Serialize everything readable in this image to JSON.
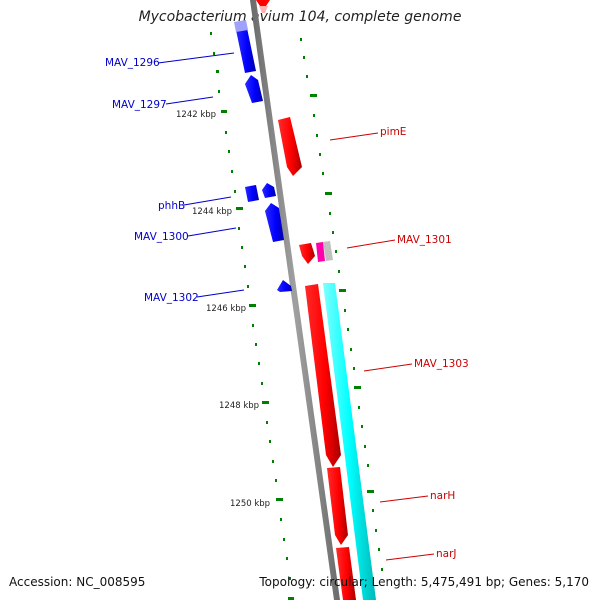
{
  "title": "Mycobacterium avium 104, complete genome",
  "footer": {
    "accession": "Accession: NC_008595",
    "summary": "Topology: circular; Length: 5,475,491 bp; Genes: 5,170"
  },
  "colors": {
    "backbone": "#808080",
    "forward_gene": "#ff0000",
    "reverse_gene": "#0000ff",
    "secondary_track": "#00ffff",
    "tick": "#008000",
    "forward_label": "#cc0000",
    "reverse_label": "#0000cc",
    "feature_pink": "#ff00aa",
    "feature_gray": "#c0c0c0"
  },
  "kbp_ticks": [
    "1242 kbp",
    "1244 kbp",
    "1246 kbp",
    "1248 kbp",
    "1250 kbp"
  ],
  "reverse_labels": [
    "MAV_1296",
    "MAV_1297",
    "phhB",
    "MAV_1300",
    "MAV_1302"
  ],
  "forward_labels": [
    "pimE",
    "MAV_1301",
    "MAV_1303",
    "narH",
    "narJ"
  ]
}
